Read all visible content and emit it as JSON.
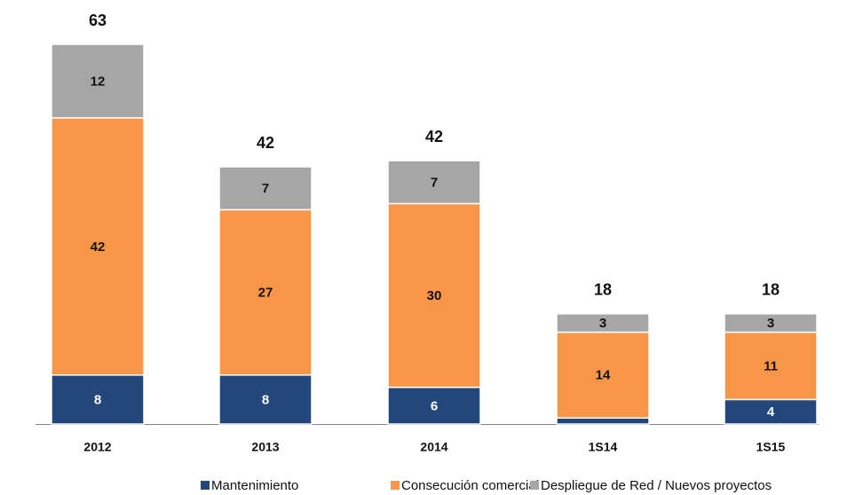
{
  "chart_data": {
    "type": "stacked_bar",
    "categories": [
      "2012",
      "2013",
      "2014",
      "1S14",
      "1S15"
    ],
    "series": [
      {
        "name": "Mantenimiento",
        "color": "#23477a",
        "values": [
          8,
          8,
          6,
          1,
          4
        ],
        "value_labels": [
          "8",
          "8",
          "6",
          null,
          "4"
        ]
      },
      {
        "name": "Consecución comercial",
        "color": "#f79646",
        "values": [
          42,
          27,
          30,
          14,
          11
        ]
      },
      {
        "name": "Despliegue de Red / Nuevos proyectos",
        "color": "#a6a6a6",
        "values": [
          12,
          7,
          7,
          3,
          3
        ]
      }
    ],
    "totals": [
      63,
      42,
      42,
      18,
      18
    ]
  }
}
